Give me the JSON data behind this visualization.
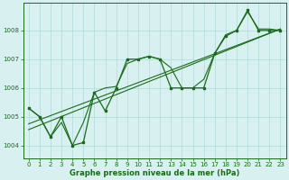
{
  "hours": [
    0,
    1,
    2,
    3,
    4,
    5,
    6,
    7,
    8,
    9,
    10,
    11,
    12,
    13,
    14,
    15,
    16,
    17,
    18,
    19,
    20,
    21,
    22,
    23
  ],
  "pressure": [
    1005.3,
    1005.0,
    1004.3,
    1005.0,
    1004.0,
    1004.1,
    1005.85,
    1005.2,
    1006.0,
    1007.0,
    1007.0,
    1007.1,
    1007.0,
    1006.0,
    1006.0,
    1006.0,
    1006.0,
    1007.2,
    1007.8,
    1008.0,
    1008.7,
    1008.0,
    1008.0,
    1008.0
  ],
  "trend1_x": [
    0,
    23
  ],
  "trend1_y": [
    1004.55,
    1008.05
  ],
  "trend2_x": [
    0,
    23
  ],
  "trend2_y": [
    1004.75,
    1008.05
  ],
  "smooth_x": [
    0,
    1,
    2,
    3,
    4,
    5,
    6,
    7,
    8,
    9,
    10,
    11,
    12,
    13,
    14,
    15,
    16,
    17,
    18,
    19,
    20,
    21,
    22,
    23
  ],
  "smooth_y": [
    1005.3,
    1005.0,
    1004.3,
    1004.8,
    1004.0,
    1004.8,
    1005.85,
    1006.0,
    1006.05,
    1006.85,
    1007.0,
    1007.1,
    1007.0,
    1006.7,
    1006.0,
    1006.0,
    1006.3,
    1007.2,
    1007.85,
    1008.0,
    1008.65,
    1008.05,
    1008.05,
    1008.0
  ],
  "line_color": "#1a6b1a",
  "bg_color": "#d8f0f0",
  "grid_color": "#b0d8d8",
  "label": "Graphe pression niveau de la mer (hPa)",
  "ylim": [
    1003.55,
    1008.95
  ],
  "yticks": [
    1004,
    1005,
    1006,
    1007,
    1008
  ],
  "xlim": [
    -0.5,
    23.5
  ],
  "xticks": [
    0,
    1,
    2,
    3,
    4,
    5,
    6,
    7,
    8,
    9,
    10,
    11,
    12,
    13,
    14,
    15,
    16,
    17,
    18,
    19,
    20,
    21,
    22,
    23
  ],
  "tick_fontsize": 5.0,
  "label_fontsize": 6.0
}
